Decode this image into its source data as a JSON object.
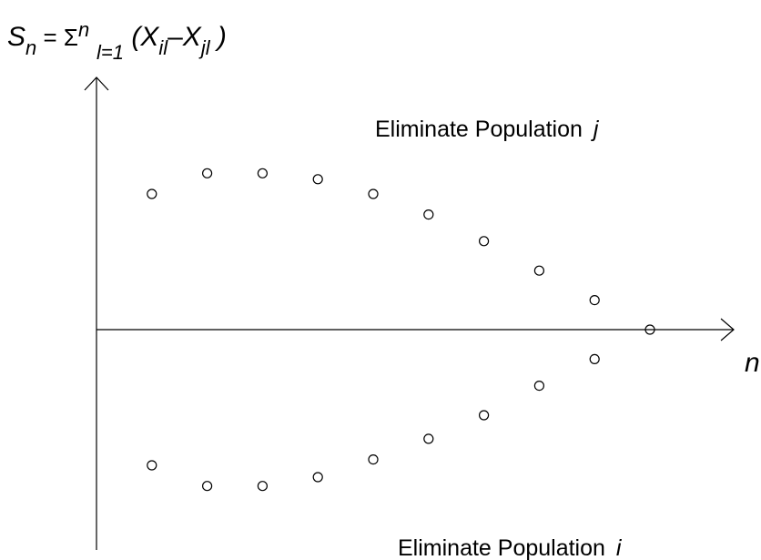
{
  "formula": {
    "lhs": "S",
    "lhs_sub": "n",
    "eq": " = ",
    "sigma": "Σ",
    "sum_upper": "n",
    "sum_lower": "l=1",
    "open_paren": " (",
    "x1": "X",
    "x1_sub": "il",
    "minus": "–",
    "x2": "X",
    "x2_sub": "jl",
    "close_paren": " )"
  },
  "x_axis_label": "n",
  "label_upper": {
    "text": "Eliminate Population",
    "var": "j"
  },
  "label_lower": {
    "text": "Eliminate Population",
    "var": "i"
  },
  "chart_data": {
    "type": "scatter",
    "title": "",
    "xlabel": "n",
    "ylabel": "S_n = Σ_{l=1}^{n} (X_il − X_jl)",
    "series": [
      {
        "name": "",
        "x": [
          1,
          2,
          3,
          4,
          5,
          6,
          7,
          8,
          9,
          10
        ],
        "y": [
          4.6,
          5.3,
          5.3,
          5.1,
          4.6,
          3.9,
          3.0,
          2.0,
          1.0,
          0.0
        ]
      },
      {
        "name": "",
        "x": [
          1,
          2,
          3,
          4,
          5,
          6,
          7,
          8,
          9
        ],
        "y": [
          -4.6,
          -5.3,
          -5.3,
          -5.0,
          -4.4,
          -3.7,
          -2.9,
          -1.9,
          -1.0
        ]
      }
    ],
    "xlim": [
      0,
      11
    ],
    "ylim": [
      -6.6,
      7.8
    ],
    "grid": false,
    "marker": "open-circle"
  }
}
